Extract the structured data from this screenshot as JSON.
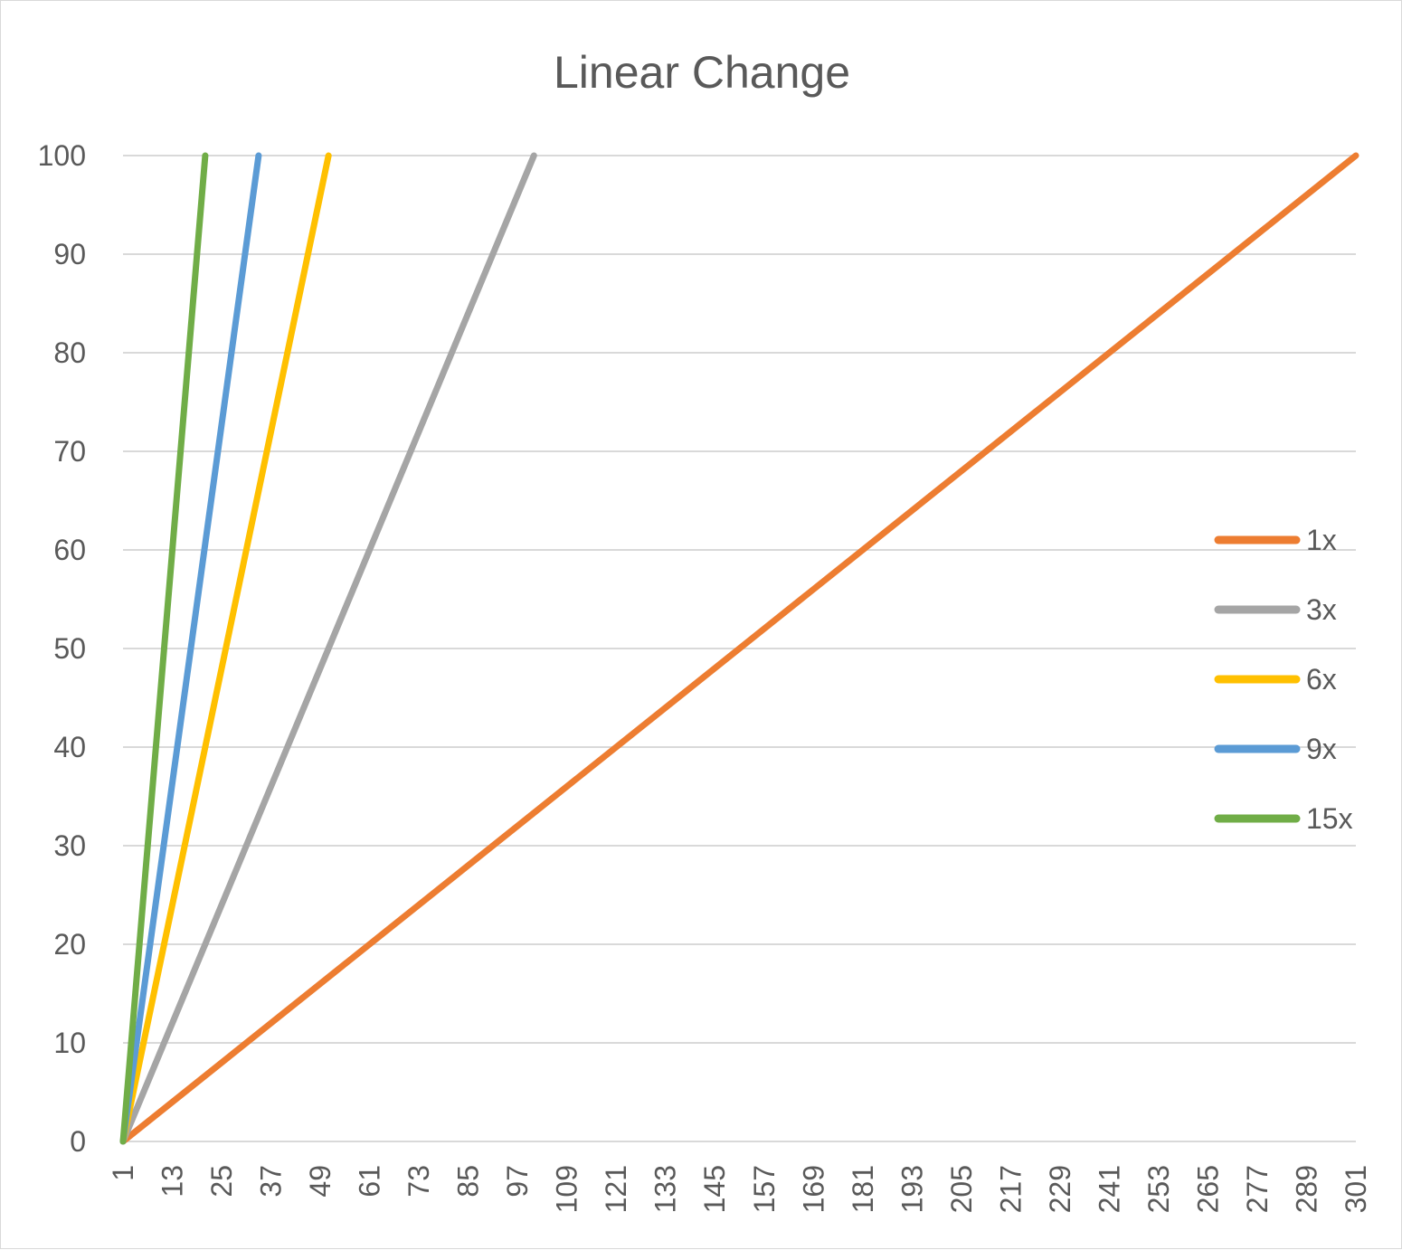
{
  "chart_data": {
    "type": "line",
    "title": "Linear Change",
    "xlabel": "",
    "ylabel": "",
    "ylim": [
      0,
      100
    ],
    "xlim": [
      1,
      301
    ],
    "y_ticks": [
      "0",
      "10",
      "20",
      "30",
      "40",
      "50",
      "60",
      "70",
      "80",
      "90",
      "100"
    ],
    "x_ticks": [
      "1",
      "13",
      "25",
      "37",
      "49",
      "61",
      "73",
      "85",
      "97",
      "109",
      "121",
      "133",
      "145",
      "157",
      "169",
      "181",
      "193",
      "205",
      "217",
      "229",
      "241",
      "253",
      "265",
      "277",
      "289",
      "301"
    ],
    "grid": "horizontal",
    "legend_position": "right",
    "series": [
      {
        "name": "1x",
        "color": "#ED7D31",
        "x": [
          1,
          301
        ],
        "y": [
          0,
          100
        ]
      },
      {
        "name": "3x",
        "color": "#A5A5A5",
        "x": [
          1,
          101
        ],
        "y": [
          0,
          100
        ]
      },
      {
        "name": "6x",
        "color": "#FFC000",
        "x": [
          1,
          51
        ],
        "y": [
          0,
          100
        ]
      },
      {
        "name": "9x",
        "color": "#5B9BD5",
        "x": [
          1,
          34
        ],
        "y": [
          0,
          100
        ]
      },
      {
        "name": "15x",
        "color": "#70AD47",
        "x": [
          1,
          21
        ],
        "y": [
          0,
          100
        ]
      }
    ]
  }
}
